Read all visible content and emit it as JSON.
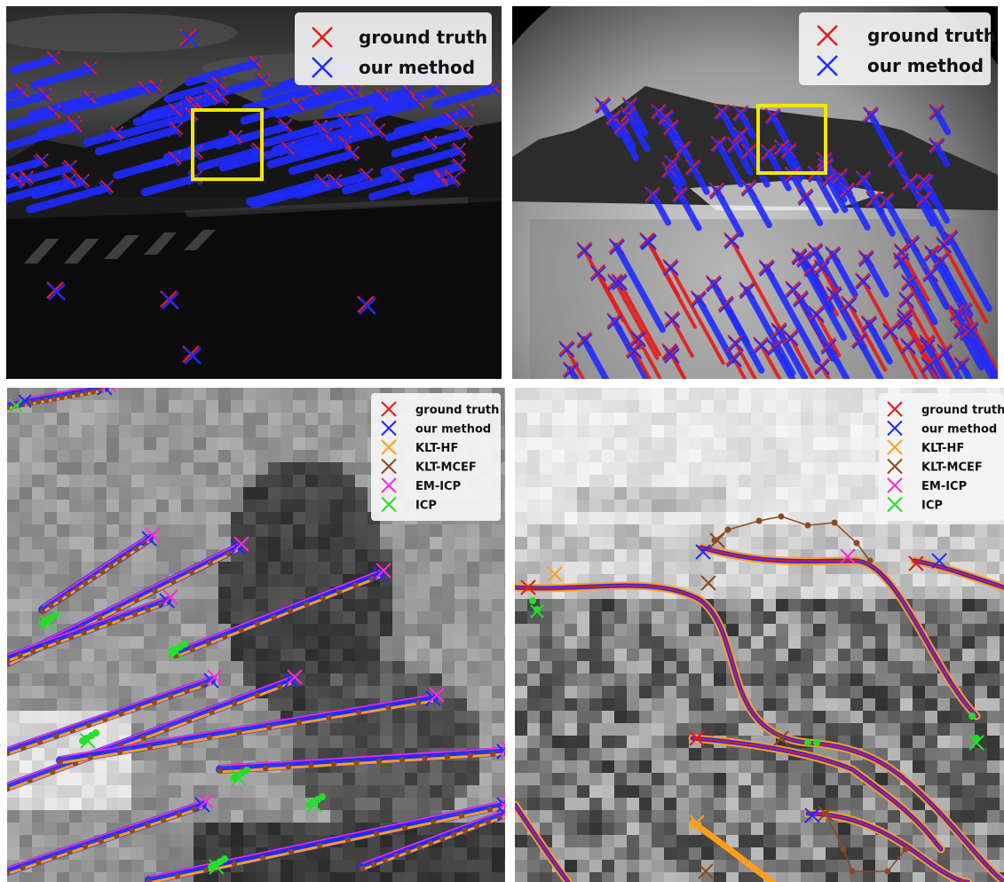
{
  "panels": {
    "top_left": {
      "legend": [
        {
          "label": "ground truth",
          "color": "#e41a1c"
        },
        {
          "label": "our method",
          "color": "#1f2bff"
        }
      ]
    },
    "top_right": {
      "legend": [
        {
          "label": "ground truth",
          "color": "#e41a1c"
        },
        {
          "label": "our method",
          "color": "#1f2bff"
        }
      ]
    },
    "bottom_left": {
      "legend": [
        {
          "label": "ground truth",
          "color": "#e41a1c"
        },
        {
          "label": "our method",
          "color": "#1f2bff"
        },
        {
          "label": "KLT-HF",
          "color": "#ff9e1b"
        },
        {
          "label": "KLT-MCEF",
          "color": "#8b4a1f"
        },
        {
          "label": "EM-ICP",
          "color": "#ff2bd8"
        },
        {
          "label": "ICP",
          "color": "#22e02a"
        }
      ]
    },
    "bottom_right": {
      "legend": [
        {
          "label": "ground truth",
          "color": "#e41a1c"
        },
        {
          "label": "our method",
          "color": "#1f2bff"
        },
        {
          "label": "KLT-HF",
          "color": "#ff9e1b"
        },
        {
          "label": "KLT-MCEF",
          "color": "#8b4a1f"
        },
        {
          "label": "EM-ICP",
          "color": "#ff2bd8"
        },
        {
          "label": "ICP",
          "color": "#22e02a"
        }
      ]
    }
  },
  "colors": {
    "ground_truth": "#e41a1c",
    "our_method": "#1f2bff",
    "klt_hf": "#ff9e1b",
    "klt_mcef": "#8b4a1f",
    "em_icp": "#ff2bd8",
    "icp": "#22e02a",
    "zoom_box": "#f2e600"
  }
}
